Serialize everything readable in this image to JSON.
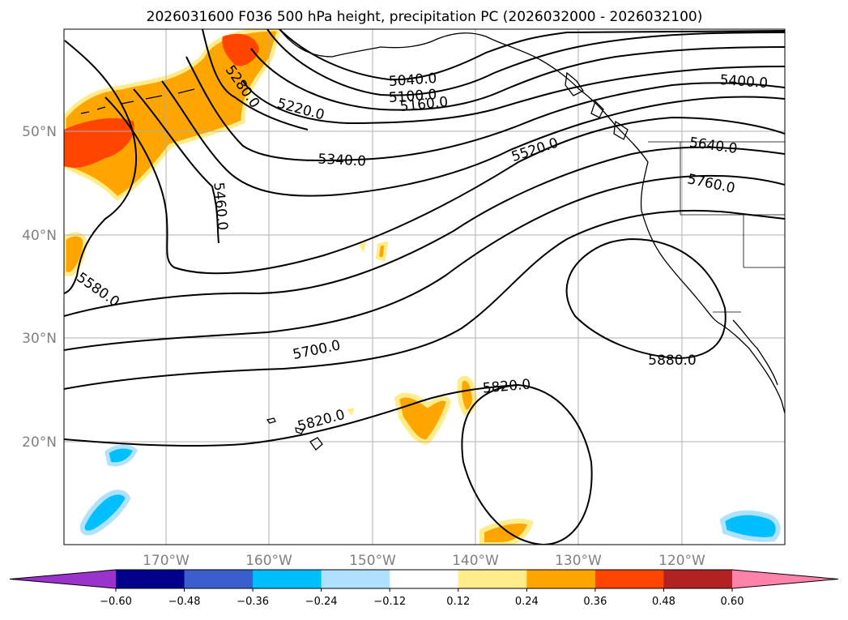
{
  "title": "2026031600 F036 500 hPa height, precipitation PC (2026032000 - 2026032100)",
  "axes": {
    "lon_ticks": [
      "170°W",
      "160°W",
      "150°W",
      "140°W",
      "130°W",
      "120°W"
    ],
    "lat_ticks": [
      "50°N",
      "40°N",
      "30°N",
      "20°N"
    ]
  },
  "colorbar": {
    "ticks": [
      "−0.60",
      "−0.48",
      "−0.36",
      "−0.24",
      "−0.12",
      "0.12",
      "0.24",
      "0.36",
      "0.48",
      "0.60"
    ],
    "colors": [
      "#9933cc",
      "#00008b",
      "#3a5fcd",
      "#00bfff",
      "#b0e2ff",
      "#ffffff",
      "#ffec8b",
      "#ffa500",
      "#ff4500",
      "#b22222",
      "#ff82ab"
    ]
  },
  "contours": {
    "labels": [
      "5040.0",
      "5100.0",
      "5160.0",
      "5220.0",
      "5280.0",
      "5340.0",
      "5400.0",
      "5460.0",
      "5520.0",
      "5580.0",
      "5640.0",
      "5700.0",
      "5760.0",
      "5820.0",
      "5820.0",
      "5880.0"
    ]
  },
  "map_colors": {
    "coast": "#000000",
    "grid": "#b0b0b0",
    "precip_orange": "#ffa500",
    "precip_red": "#ff4500",
    "precip_yellow": "#ffec8b",
    "precip_cyan": "#00bfff",
    "precip_lightblue": "#b0e2ff"
  }
}
